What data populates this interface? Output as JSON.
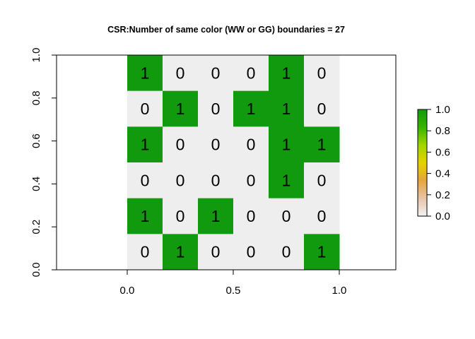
{
  "chart_data": {
    "type": "heatmap",
    "title": "CSR:Number of same color (WW or GG) boundaries =  27",
    "xlabel": "",
    "ylabel": "",
    "xlim": [
      -0.3333,
      1.2667
    ],
    "ylim": [
      0,
      1
    ],
    "x_ticks": [
      "0.0",
      "0.5",
      "1.0"
    ],
    "x_tick_values": [
      0,
      0.5,
      1
    ],
    "y_ticks": [
      "0.0",
      "0.2",
      "0.4",
      "0.6",
      "0.8",
      "1.0"
    ],
    "y_tick_values": [
      0,
      0.2,
      0.4,
      0.6,
      0.8,
      1.0
    ],
    "grid_x_range": [
      0,
      1
    ],
    "grid_rows_top_to_bottom": [
      [
        1,
        0,
        0,
        0,
        1,
        0
      ],
      [
        0,
        1,
        0,
        1,
        1,
        0
      ],
      [
        1,
        0,
        0,
        0,
        1,
        1
      ],
      [
        0,
        0,
        0,
        0,
        1,
        0
      ],
      [
        1,
        0,
        1,
        0,
        0,
        0
      ],
      [
        0,
        1,
        0,
        0,
        0,
        1
      ]
    ],
    "cell_labels": [
      "0",
      "1"
    ],
    "colors": {
      "0": "#eeeeee",
      "1": "#119a0e"
    },
    "grid": false,
    "legend": {
      "placement": "right",
      "range": [
        0,
        1
      ],
      "ticks": [
        "0.0",
        "0.2",
        "0.4",
        "0.6",
        "0.8",
        "1.0"
      ],
      "tick_values": [
        0,
        0.2,
        0.4,
        0.6,
        0.8,
        1.0
      ],
      "gradient_colors": [
        "#f2f2f2",
        "#e8c3a8",
        "#e3a53c",
        "#e4d200",
        "#a2d400",
        "#36b400",
        "#119a0e"
      ]
    }
  }
}
